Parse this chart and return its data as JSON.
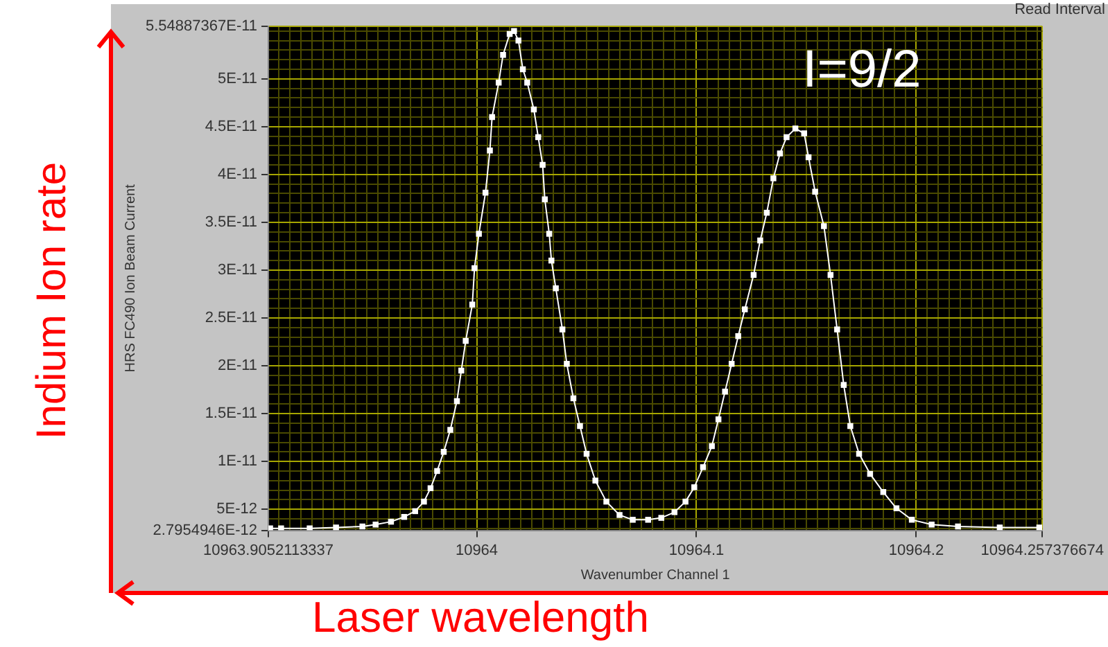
{
  "chart_data": {
    "type": "line",
    "xlabel": "Wavenumber Channel 1",
    "ylabel": "HRS FC490 Ion Beam Current",
    "annotations": [
      "I=9/2",
      "Read Interval",
      "Indium Ion rate",
      "Laser wavelength"
    ],
    "x": [
      10963.906,
      10963.911,
      10963.924,
      10963.936,
      10963.948,
      10963.954,
      10963.961,
      10963.967,
      10963.972,
      10963.976,
      10963.979,
      10963.982,
      10963.985,
      10963.988,
      10963.991,
      10963.993,
      10963.995,
      10963.998,
      10963.999,
      10964.001,
      10964.004,
      10964.006,
      10964.007,
      10964.01,
      10964.012,
      10964.015,
      10964.017,
      10964.019,
      10964.021,
      10964.023,
      10964.026,
      10964.028,
      10964.03,
      10964.031,
      10964.033,
      10964.034,
      10964.036,
      10964.039,
      10964.041,
      10964.044,
      10964.047,
      10964.05,
      10964.054,
      10964.059,
      10964.065,
      10964.071,
      10964.078,
      10964.084,
      10964.09,
      10964.095,
      10964.099,
      10964.103,
      10964.107,
      10964.11,
      10964.113,
      10964.116,
      10964.119,
      10964.122,
      10964.126,
      10964.129,
      10964.132,
      10964.135,
      10964.138,
      10964.141,
      10964.145,
      10964.149,
      10964.151,
      10964.154,
      10964.158,
      10964.161,
      10964.164,
      10964.167,
      10964.17,
      10964.174,
      10964.179,
      10964.185,
      10964.191,
      10964.198,
      10964.207,
      10964.219,
      10964.238,
      10964.256
    ],
    "series": [
      {
        "color": "#ffffff",
        "values": [
          3e-12,
          3e-12,
          3e-12,
          3.1e-12,
          3.2e-12,
          3.4e-12,
          3.7e-12,
          4.2e-12,
          4.8e-12,
          5.8e-12,
          7.2e-12,
          9e-12,
          1.1e-11,
          1.33e-11,
          1.63e-11,
          1.95e-11,
          2.26e-11,
          2.64e-11,
          3.02e-11,
          3.38e-11,
          3.81e-11,
          4.25e-11,
          4.6e-11,
          4.96e-11,
          5.25e-11,
          5.47e-11,
          5.5e-11,
          5.4e-11,
          5.1e-11,
          4.96e-11,
          4.68e-11,
          4.39e-11,
          4.1e-11,
          3.74e-11,
          3.38e-11,
          3.1e-11,
          2.81e-11,
          2.38e-11,
          2.02e-11,
          1.66e-11,
          1.37e-11,
          1.08e-11,
          8e-12,
          5.8e-12,
          4.4e-12,
          3.9e-12,
          3.9e-12,
          4.1e-12,
          4.7e-12,
          5.8e-12,
          7.3e-12,
          9.4e-12,
          1.16e-11,
          1.44e-11,
          1.73e-11,
          2.02e-11,
          2.31e-11,
          2.59e-11,
          2.95e-11,
          3.31e-11,
          3.6e-11,
          3.96e-11,
          4.22e-11,
          4.39e-11,
          4.48e-11,
          4.43e-11,
          4.18e-11,
          3.82e-11,
          3.46e-11,
          2.95e-11,
          2.38e-11,
          1.8e-11,
          1.37e-11,
          1.08e-11,
          8.7e-12,
          6.8e-12,
          5.1e-12,
          3.9e-12,
          3.4e-12,
          3.2e-12,
          3.1e-12,
          3.1e-12
        ]
      }
    ],
    "marker": "square",
    "grid": true,
    "xlim": [
      10963.9052113337,
      10964.257376674
    ],
    "ylim": [
      2.7954946e-12,
      5.54887367e-11
    ],
    "xticks": [
      {
        "value": 10963.9052113337,
        "label": "10963.9052113337"
      },
      {
        "value": 10963.91,
        "label": null
      },
      {
        "value": 10963.915,
        "label": null
      },
      {
        "value": 10963.92,
        "label": null
      },
      {
        "value": 10963.925,
        "label": null
      },
      {
        "value": 10963.93,
        "label": null
      },
      {
        "value": 10963.935,
        "label": null
      },
      {
        "value": 10963.94,
        "label": null
      },
      {
        "value": 10963.945,
        "label": null
      },
      {
        "value": 10963.95,
        "label": null
      },
      {
        "value": 10963.955,
        "label": null
      },
      {
        "value": 10963.96,
        "label": null
      },
      {
        "value": 10963.965,
        "label": null
      },
      {
        "value": 10963.97,
        "label": null
      },
      {
        "value": 10963.975,
        "label": null
      },
      {
        "value": 10963.98,
        "label": null
      },
      {
        "value": 10963.985,
        "label": null
      },
      {
        "value": 10963.99,
        "label": null
      },
      {
        "value": 10963.995,
        "label": null
      },
      {
        "value": 10964,
        "label": "10964"
      },
      {
        "value": 10964.005,
        "label": null
      },
      {
        "value": 10964.01,
        "label": null
      },
      {
        "value": 10964.015,
        "label": null
      },
      {
        "value": 10964.02,
        "label": null
      },
      {
        "value": 10964.025,
        "label": null
      },
      {
        "value": 10964.03,
        "label": null
      },
      {
        "value": 10964.035,
        "label": null
      },
      {
        "value": 10964.04,
        "label": null
      },
      {
        "value": 10964.045,
        "label": null
      },
      {
        "value": 10964.05,
        "label": null
      },
      {
        "value": 10964.055,
        "label": null
      },
      {
        "value": 10964.06,
        "label": null
      },
      {
        "value": 10964.065,
        "label": null
      },
      {
        "value": 10964.07,
        "label": null
      },
      {
        "value": 10964.075,
        "label": null
      },
      {
        "value": 10964.08,
        "label": null
      },
      {
        "value": 10964.085,
        "label": null
      },
      {
        "value": 10964.09,
        "label": null
      },
      {
        "value": 10964.095,
        "label": null
      },
      {
        "value": 10964.1,
        "label": "10964.1"
      },
      {
        "value": 10964.105,
        "label": null
      },
      {
        "value": 10964.11,
        "label": null
      },
      {
        "value": 10964.115,
        "label": null
      },
      {
        "value": 10964.12,
        "label": null
      },
      {
        "value": 10964.125,
        "label": null
      },
      {
        "value": 10964.13,
        "label": null
      },
      {
        "value": 10964.135,
        "label": null
      },
      {
        "value": 10964.14,
        "label": null
      },
      {
        "value": 10964.145,
        "label": null
      },
      {
        "value": 10964.15,
        "label": null
      },
      {
        "value": 10964.155,
        "label": null
      },
      {
        "value": 10964.16,
        "label": null
      },
      {
        "value": 10964.165,
        "label": null
      },
      {
        "value": 10964.17,
        "label": null
      },
      {
        "value": 10964.175,
        "label": null
      },
      {
        "value": 10964.18,
        "label": null
      },
      {
        "value": 10964.185,
        "label": null
      },
      {
        "value": 10964.19,
        "label": null
      },
      {
        "value": 10964.195,
        "label": null
      },
      {
        "value": 10964.2,
        "label": "10964.2"
      },
      {
        "value": 10964.205,
        "label": null
      },
      {
        "value": 10964.21,
        "label": null
      },
      {
        "value": 10964.215,
        "label": null
      },
      {
        "value": 10964.22,
        "label": null
      },
      {
        "value": 10964.225,
        "label": null
      },
      {
        "value": 10964.23,
        "label": null
      },
      {
        "value": 10964.235,
        "label": null
      },
      {
        "value": 10964.24,
        "label": null
      },
      {
        "value": 10964.245,
        "label": null
      },
      {
        "value": 10964.25,
        "label": null
      },
      {
        "value": 10964.255,
        "label": null
      },
      {
        "value": 10964.257376674,
        "label": "10964.257376674"
      }
    ],
    "yticks": [
      {
        "value": 2.7954946e-12,
        "label": "2.7954946E-12"
      },
      {
        "value": 3e-12,
        "label": null
      },
      {
        "value": 4e-12,
        "label": null
      },
      {
        "value": 5e-12,
        "label": "5E-12"
      },
      {
        "value": 6e-12,
        "label": null
      },
      {
        "value": 7e-12,
        "label": null
      },
      {
        "value": 8e-12,
        "label": null
      },
      {
        "value": 9e-12,
        "label": null
      },
      {
        "value": 1e-11,
        "label": "1E-11"
      },
      {
        "value": 1.1e-11,
        "label": null
      },
      {
        "value": 1.2e-11,
        "label": null
      },
      {
        "value": 1.3e-11,
        "label": null
      },
      {
        "value": 1.4e-11,
        "label": null
      },
      {
        "value": 1.5e-11,
        "label": "1.5E-11"
      },
      {
        "value": 1.6e-11,
        "label": null
      },
      {
        "value": 1.7e-11,
        "label": null
      },
      {
        "value": 1.8e-11,
        "label": null
      },
      {
        "value": 1.9e-11,
        "label": null
      },
      {
        "value": 2e-11,
        "label": "2E-11"
      },
      {
        "value": 2.1e-11,
        "label": null
      },
      {
        "value": 2.2e-11,
        "label": null
      },
      {
        "value": 2.3e-11,
        "label": null
      },
      {
        "value": 2.4e-11,
        "label": null
      },
      {
        "value": 2.5e-11,
        "label": "2.5E-11"
      },
      {
        "value": 2.6e-11,
        "label": null
      },
      {
        "value": 2.7e-11,
        "label": null
      },
      {
        "value": 2.8e-11,
        "label": null
      },
      {
        "value": 2.9e-11,
        "label": null
      },
      {
        "value": 3e-11,
        "label": "3E-11"
      },
      {
        "value": 3.1e-11,
        "label": null
      },
      {
        "value": 3.2e-11,
        "label": null
      },
      {
        "value": 3.3e-11,
        "label": null
      },
      {
        "value": 3.4e-11,
        "label": null
      },
      {
        "value": 3.5e-11,
        "label": "3.5E-11"
      },
      {
        "value": 3.6e-11,
        "label": null
      },
      {
        "value": 3.7e-11,
        "label": null
      },
      {
        "value": 3.8e-11,
        "label": null
      },
      {
        "value": 3.9e-11,
        "label": null
      },
      {
        "value": 4e-11,
        "label": "4E-11"
      },
      {
        "value": 4.1e-11,
        "label": null
      },
      {
        "value": 4.2e-11,
        "label": null
      },
      {
        "value": 4.3e-11,
        "label": null
      },
      {
        "value": 4.4e-11,
        "label": null
      },
      {
        "value": 4.5e-11,
        "label": "4.5E-11"
      },
      {
        "value": 4.6e-11,
        "label": null
      },
      {
        "value": 4.7e-11,
        "label": null
      },
      {
        "value": 4.8e-11,
        "label": null
      },
      {
        "value": 4.9e-11,
        "label": null
      },
      {
        "value": 5e-11,
        "label": "5E-11"
      },
      {
        "value": 5.1e-11,
        "label": null
      },
      {
        "value": 5.2e-11,
        "label": null
      },
      {
        "value": 5.3e-11,
        "label": null
      },
      {
        "value": 5.4e-11,
        "label": null
      },
      {
        "value": 5.5e-11,
        "label": null
      },
      {
        "value": 5.54887367e-11,
        "label": "5.54887367E-11"
      }
    ]
  }
}
